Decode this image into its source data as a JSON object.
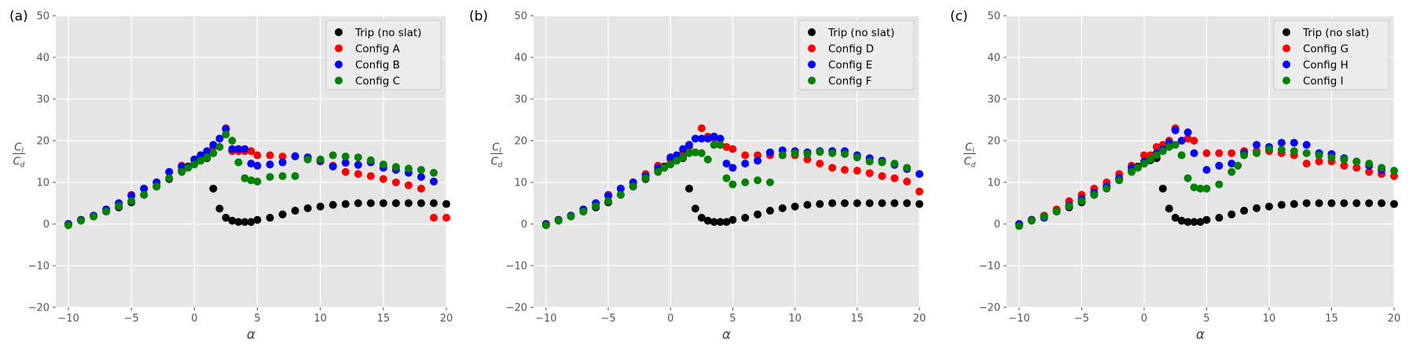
{
  "chart_data": [
    {
      "type": "scatter",
      "panel_label": "(a)",
      "xlabel": "α",
      "ylabel": "Cl/Cd",
      "ylabel_num": "C",
      "ylabel_num_sub": "l",
      "ylabel_den": "C",
      "ylabel_den_sub": "d",
      "xlim": [
        -11,
        20
      ],
      "ylim": [
        -20,
        50
      ],
      "xticks": [
        -10,
        -5,
        0,
        5,
        10,
        15,
        20
      ],
      "yticks": [
        -20,
        -10,
        0,
        10,
        20,
        30,
        40,
        50
      ],
      "grid": true,
      "legend_position": "top-right",
      "series": [
        {
          "name": "Trip (no slat)",
          "color": "#000000",
          "x": [
            -10,
            -9,
            -8,
            -7,
            -6,
            -5,
            -4,
            -3,
            -2,
            -1,
            -0.5,
            0,
            0.5,
            1,
            1.5,
            2,
            2.5,
            3,
            3.5,
            4,
            4.5,
            5,
            6,
            7,
            8,
            9,
            10,
            11,
            12,
            13,
            14,
            15,
            16,
            17,
            18,
            19,
            20
          ],
          "y": [
            0,
            1,
            2,
            3,
            4,
            5.2,
            7,
            9,
            10.8,
            12.8,
            13.8,
            14.5,
            15.3,
            15.8,
            8.5,
            3.7,
            1.5,
            0.8,
            0.5,
            0.5,
            0.5,
            1,
            1.5,
            2.3,
            3.2,
            3.8,
            4.2,
            4.6,
            4.8,
            5,
            5,
            5,
            5,
            5,
            5,
            5,
            4.8
          ]
        },
        {
          "name": "Config A",
          "color": "#ff0000",
          "x": [
            -10,
            -9,
            -8,
            -7,
            -6,
            -5,
            -4,
            -3,
            -2,
            -1,
            0,
            0.5,
            1,
            1.5,
            2,
            2.5,
            3,
            3.5,
            4,
            4.5,
            5,
            6,
            7,
            8,
            9,
            10,
            11,
            12,
            13,
            14,
            15,
            16,
            17,
            18,
            19,
            20
          ],
          "y": [
            0,
            1,
            2,
            3.5,
            5,
            7,
            8.5,
            10,
            12.5,
            14,
            15.5,
            16.5,
            17,
            18.5,
            20.5,
            23,
            17.5,
            17.5,
            17.5,
            17.5,
            16.5,
            16.5,
            16.2,
            16.2,
            16,
            15,
            14,
            12.5,
            12,
            11.5,
            10.8,
            10,
            9.3,
            8.5,
            1.5,
            1.5
          ]
        },
        {
          "name": "Config B",
          "color": "#0000ff",
          "x": [
            -10,
            -9,
            -8,
            -7,
            -6,
            -5,
            -4,
            -3,
            -2,
            -1,
            0,
            0.5,
            1,
            1.5,
            2,
            2.5,
            3,
            3.5,
            4,
            4.5,
            5,
            6,
            7,
            8,
            9,
            10,
            11,
            12,
            13,
            14,
            15,
            16,
            17,
            18,
            19
          ],
          "y": [
            0,
            1,
            2,
            3.5,
            5,
            6.8,
            8.5,
            10,
            12.5,
            13.8,
            15.5,
            16.5,
            17.5,
            19,
            20.5,
            22.8,
            18,
            18,
            18,
            14.5,
            14,
            14.3,
            14.8,
            16.3,
            16,
            15.2,
            13.8,
            14.7,
            14.2,
            14.8,
            13.5,
            13,
            12.3,
            11.3,
            10.2
          ]
        },
        {
          "name": "Config C",
          "color": "#008000",
          "x": [
            -10,
            -9,
            -8,
            -7,
            -6,
            -5,
            -4,
            -3,
            -2,
            -1,
            -0.5,
            0,
            0.5,
            1,
            1.5,
            2,
            2.5,
            3,
            3.5,
            4,
            4.5,
            5,
            6,
            7,
            8,
            9,
            10,
            11,
            12,
            13,
            14,
            15,
            16,
            17,
            18,
            19
          ],
          "y": [
            -0.3,
            0.8,
            1.8,
            3,
            4.3,
            5.5,
            7,
            9,
            11,
            12.5,
            13.5,
            14.3,
            15.2,
            16,
            17,
            18.5,
            21.5,
            20,
            14.8,
            11,
            10.5,
            10.2,
            11.3,
            11.5,
            11.5,
            15.5,
            15.5,
            16.5,
            16.2,
            16,
            15.3,
            14.3,
            13.7,
            13.3,
            13,
            12.3
          ]
        }
      ]
    },
    {
      "type": "scatter",
      "panel_label": "(b)",
      "xlabel": "α",
      "ylabel": "Cl/Cd",
      "ylabel_num": "C",
      "ylabel_num_sub": "l",
      "ylabel_den": "C",
      "ylabel_den_sub": "d",
      "xlim": [
        -11,
        20
      ],
      "ylim": [
        -20,
        50
      ],
      "xticks": [
        -10,
        -5,
        0,
        5,
        10,
        15,
        20
      ],
      "yticks": [
        -20,
        -10,
        0,
        10,
        20,
        30,
        40,
        50
      ],
      "grid": true,
      "legend_position": "top-right",
      "series": [
        {
          "name": "Trip (no slat)",
          "color": "#000000",
          "x": [
            -10,
            -9,
            -8,
            -7,
            -6,
            -5,
            -4,
            -3,
            -2,
            -1,
            -0.5,
            0,
            0.5,
            1,
            1.5,
            2,
            2.5,
            3,
            3.5,
            4,
            4.5,
            5,
            6,
            7,
            8,
            9,
            10,
            11,
            12,
            13,
            14,
            15,
            16,
            17,
            18,
            19,
            20
          ],
          "y": [
            0,
            1,
            2,
            3,
            4,
            5.2,
            7,
            9,
            10.8,
            12.8,
            13.8,
            14.5,
            15.3,
            15.8,
            8.5,
            3.7,
            1.5,
            0.8,
            0.5,
            0.5,
            0.5,
            1,
            1.5,
            2.3,
            3.2,
            3.8,
            4.2,
            4.6,
            4.8,
            5,
            5,
            5,
            5,
            5,
            5,
            5,
            4.8
          ]
        },
        {
          "name": "Config D",
          "color": "#ff0000",
          "x": [
            -10,
            -9,
            -8,
            -7,
            -6,
            -5,
            -4,
            -3,
            -2,
            -1,
            0,
            0.5,
            1,
            1.5,
            2,
            2.5,
            3,
            3.5,
            4,
            4.5,
            5,
            6,
            7,
            8,
            9,
            10,
            11,
            12,
            13,
            14,
            15,
            16,
            17,
            18,
            19,
            20
          ],
          "y": [
            0,
            1,
            2,
            3.5,
            5,
            7,
            8.5,
            10,
            12,
            14,
            15.5,
            16.2,
            17,
            18.5,
            20.5,
            23,
            21,
            20.5,
            19,
            18.5,
            18,
            16.5,
            16.5,
            16.5,
            16.5,
            16.5,
            15.5,
            14.5,
            13.5,
            13,
            12.8,
            12.2,
            11.5,
            11,
            10.2,
            7.8
          ]
        },
        {
          "name": "Config E",
          "color": "#0000ff",
          "x": [
            -10,
            -9,
            -8,
            -7,
            -6,
            -5,
            -4,
            -3,
            -2,
            -1,
            0,
            0.5,
            1,
            1.5,
            2,
            2.5,
            3,
            3.5,
            4,
            4.5,
            5,
            6,
            7,
            8,
            9,
            10,
            11,
            12,
            13,
            14,
            15,
            16,
            17,
            18,
            19,
            20
          ],
          "y": [
            0,
            1,
            2,
            3.5,
            5,
            6.8,
            8.5,
            10,
            11.5,
            13.5,
            16,
            16.5,
            18,
            19,
            20.5,
            20.5,
            20.5,
            21,
            20.5,
            14.5,
            13.5,
            14.5,
            15.2,
            17.2,
            17.7,
            17.5,
            17.2,
            17.5,
            17.5,
            17.5,
            16.5,
            15.8,
            15.2,
            14.2,
            13.2,
            12
          ]
        },
        {
          "name": "Config F",
          "color": "#008000",
          "x": [
            -10,
            -9,
            -8,
            -7,
            -6,
            -5,
            -4,
            -3,
            -2,
            -1,
            -0.5,
            0,
            0.5,
            1,
            1.5,
            2,
            2.5,
            3,
            3.5,
            4,
            4.5,
            5,
            6,
            7,
            8,
            9,
            10,
            11,
            12,
            13,
            14,
            15,
            16,
            17,
            18,
            19
          ],
          "y": [
            -0.3,
            0.8,
            1.8,
            3,
            4.3,
            5.5,
            7,
            9,
            11,
            12.5,
            13.5,
            14.3,
            15.2,
            16,
            17,
            17.2,
            17,
            15.5,
            19,
            19,
            11,
            9.5,
            10,
            10.5,
            10,
            16.5,
            17,
            16.8,
            17.3,
            17,
            16.8,
            16,
            15,
            14.8,
            14.5,
            13.5
          ]
        }
      ]
    },
    {
      "type": "scatter",
      "panel_label": "(c)",
      "xlabel": "α",
      "ylabel": "Cl/Cd",
      "ylabel_num": "C",
      "ylabel_num_sub": "l",
      "ylabel_den": "C",
      "ylabel_den_sub": "d",
      "xlim": [
        -11,
        20
      ],
      "ylim": [
        -20,
        50
      ],
      "xticks": [
        -10,
        -5,
        0,
        5,
        10,
        15,
        20
      ],
      "yticks": [
        -20,
        -10,
        0,
        10,
        20,
        30,
        40,
        50
      ],
      "grid": true,
      "legend_position": "top-right",
      "series": [
        {
          "name": "Trip (no slat)",
          "color": "#000000",
          "x": [
            -10,
            -9,
            -8,
            -7,
            -6,
            -5,
            -4,
            -3,
            -2,
            -1,
            -0.5,
            0,
            0.5,
            1,
            1.5,
            2,
            2.5,
            3,
            3.5,
            4,
            4.5,
            5,
            6,
            7,
            8,
            9,
            10,
            11,
            12,
            13,
            14,
            15,
            16,
            17,
            18,
            19,
            20
          ],
          "y": [
            0,
            1,
            2,
            3,
            4,
            5.2,
            7,
            9,
            10.8,
            12.8,
            13.8,
            14.5,
            15.3,
            15.8,
            8.5,
            3.7,
            1.5,
            0.8,
            0.5,
            0.5,
            0.5,
            1,
            1.5,
            2.3,
            3.2,
            3.8,
            4.2,
            4.6,
            4.8,
            5,
            5,
            5,
            5,
            5,
            5,
            5,
            4.8
          ]
        },
        {
          "name": "Config G",
          "color": "#ff0000",
          "x": [
            -10,
            -9,
            -8,
            -7,
            -6,
            -5,
            -4,
            -3,
            -2,
            -1,
            0,
            0.5,
            1,
            1.5,
            2,
            2.5,
            3,
            3.5,
            4,
            5,
            6,
            7,
            8,
            9,
            10,
            11,
            12,
            13,
            14,
            15,
            16,
            17,
            18,
            19,
            20
          ],
          "y": [
            0,
            1,
            2,
            3.5,
            5.5,
            7,
            8.5,
            10,
            12,
            14,
            16.5,
            16.5,
            18.5,
            19,
            20,
            23,
            20,
            20.5,
            20,
            17,
            17,
            17,
            17.5,
            17.5,
            17.5,
            17,
            16.5,
            14.5,
            15,
            15,
            14,
            13.5,
            12.5,
            12,
            11.5
          ]
        },
        {
          "name": "Config H",
          "color": "#0000ff",
          "x": [
            -10,
            -9,
            -8,
            -7,
            -6,
            -5,
            -4,
            -3,
            -2,
            -1,
            0,
            0.5,
            1,
            1.5,
            2,
            2.5,
            3,
            3.5,
            4,
            5,
            6,
            7,
            8,
            9,
            10,
            11,
            12,
            13,
            14,
            15,
            16,
            17,
            18,
            19
          ],
          "y": [
            0,
            1,
            1.5,
            3,
            4.5,
            6,
            7.5,
            9,
            11,
            13.5,
            15,
            15.5,
            17,
            18,
            19.5,
            22.5,
            20,
            22,
            17,
            13,
            14,
            14.5,
            17,
            19,
            18.5,
            19.5,
            19.5,
            19,
            17,
            16.8,
            15.8,
            15,
            14,
            13
          ]
        },
        {
          "name": "Config I",
          "color": "#008000",
          "x": [
            -10,
            -9,
            -8,
            -7,
            -6,
            -5,
            -4,
            -3,
            -2,
            -1,
            -0.5,
            0,
            0.5,
            1,
            1.5,
            2,
            2.5,
            3,
            3.5,
            4,
            4.5,
            5,
            6,
            7,
            7.5,
            8,
            9,
            10,
            11,
            12,
            13,
            14,
            15,
            16,
            17,
            18,
            19,
            20
          ],
          "y": [
            -0.5,
            0.8,
            1.8,
            3,
            4.3,
            5.5,
            7,
            8.5,
            10.5,
            12.5,
            13.5,
            14.5,
            15.5,
            16.5,
            17.5,
            18.5,
            19,
            16.5,
            11,
            8.8,
            8.5,
            8.5,
            9.5,
            12.5,
            14,
            16.5,
            17,
            18,
            17.8,
            17.5,
            17,
            16.5,
            16,
            15.5,
            15,
            14.5,
            13.5,
            12.8
          ]
        }
      ]
    }
  ]
}
